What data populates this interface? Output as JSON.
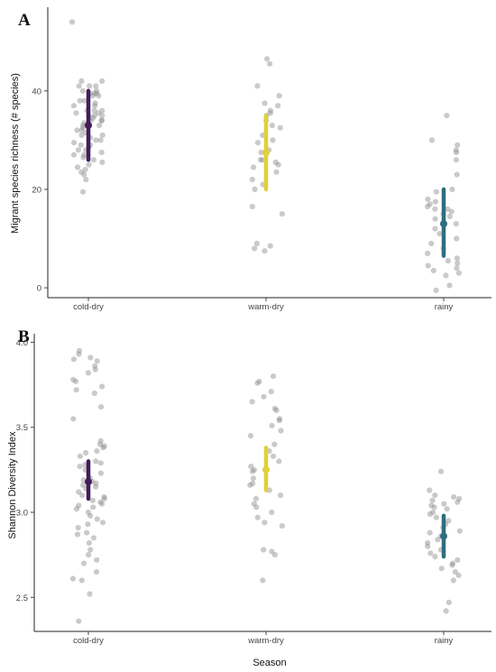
{
  "chart_data": [
    {
      "type": "scatter",
      "panel_label": "A",
      "xlabel": "",
      "ylabel": "Migrant species richness (# species)",
      "categories": [
        "cold-dry",
        "warm-dry",
        "rainy"
      ],
      "ylim": [
        -2,
        57
      ],
      "yticks": [
        0,
        20,
        40
      ],
      "grid": false,
      "summary": [
        {
          "category": "cold-dry",
          "mean": 33,
          "lower": 26,
          "upper": 40,
          "color": "#441a5c"
        },
        {
          "category": "warm-dry",
          "mean": 27.5,
          "lower": 20,
          "upper": 35,
          "color": "#e0d03a"
        },
        {
          "category": "rainy",
          "mean": 13,
          "lower": 6.5,
          "upper": 20,
          "color": "#2f6e7e"
        }
      ],
      "points": [
        {
          "category": "cold-dry",
          "values": [
            54,
            42,
            42,
            41,
            41,
            41,
            40,
            40,
            39.5,
            39.5,
            39.5,
            39,
            39,
            38,
            38,
            37.5,
            37,
            37,
            36,
            36,
            36,
            35.5,
            35.5,
            35,
            35,
            35,
            34.5,
            34,
            34,
            34,
            33.5,
            33,
            33,
            32.5,
            32,
            32,
            31.5,
            31,
            31,
            30.5,
            30,
            30,
            29.5,
            29,
            29,
            28.5,
            28,
            28,
            27.5,
            27,
            27,
            26.5,
            26,
            25.5,
            25,
            24.5,
            24,
            23.5,
            23,
            22,
            19.5
          ]
        },
        {
          "category": "warm-dry",
          "values": [
            46.5,
            45.5,
            41,
            39,
            37.5,
            37,
            36,
            35.5,
            35,
            34,
            33,
            32.5,
            31,
            30,
            29.5,
            28,
            27.5,
            26,
            26,
            25.5,
            25,
            24.5,
            23.5,
            22,
            21,
            20,
            16.5,
            15,
            9,
            8.5,
            8,
            7.5
          ]
        },
        {
          "category": "rainy",
          "values": [
            35,
            30,
            29,
            28,
            27.5,
            26,
            23,
            20,
            19.5,
            18,
            17.5,
            17,
            16.5,
            16,
            16,
            15.5,
            15,
            14.5,
            14,
            13,
            12,
            11,
            10,
            9,
            8,
            7,
            6,
            5.5,
            5,
            4.5,
            4,
            3.5,
            3,
            2.5,
            0.5,
            -0.5
          ]
        }
      ]
    },
    {
      "type": "scatter",
      "panel_label": "B",
      "xlabel": "Season",
      "ylabel": "Shannon Diversity Index",
      "categories": [
        "cold-dry",
        "warm-dry",
        "rainy"
      ],
      "ylim": [
        2.3,
        4.05
      ],
      "yticks": [
        2.5,
        3.0,
        3.5,
        4.0
      ],
      "grid": false,
      "summary": [
        {
          "category": "cold-dry",
          "mean": 3.18,
          "lower": 3.08,
          "upper": 3.3,
          "color": "#441a5c"
        },
        {
          "category": "warm-dry",
          "mean": 3.25,
          "lower": 3.13,
          "upper": 3.38,
          "color": "#e0d03a"
        },
        {
          "category": "rainy",
          "mean": 2.86,
          "lower": 2.74,
          "upper": 2.98,
          "color": "#2f6e7e"
        }
      ],
      "points": [
        {
          "category": "cold-dry",
          "values": [
            3.95,
            3.93,
            3.91,
            3.9,
            3.89,
            3.86,
            3.84,
            3.82,
            3.78,
            3.77,
            3.74,
            3.72,
            3.7,
            3.62,
            3.55,
            3.42,
            3.4,
            3.39,
            3.38,
            3.36,
            3.35,
            3.33,
            3.3,
            3.29,
            3.28,
            3.27,
            3.25,
            3.23,
            3.2,
            3.19,
            3.18,
            3.17,
            3.16,
            3.15,
            3.14,
            3.12,
            3.1,
            3.09,
            3.08,
            3.07,
            3.06,
            3.05,
            3.04,
            3.03,
            3.02,
            3.0,
            2.98,
            2.96,
            2.94,
            2.93,
            2.91,
            2.88,
            2.87,
            2.85,
            2.82,
            2.78,
            2.75,
            2.72,
            2.7,
            2.65,
            2.61,
            2.6,
            2.52,
            2.36
          ]
        },
        {
          "category": "warm-dry",
          "values": [
            3.8,
            3.77,
            3.76,
            3.71,
            3.68,
            3.65,
            3.61,
            3.6,
            3.55,
            3.54,
            3.51,
            3.48,
            3.45,
            3.4,
            3.36,
            3.33,
            3.3,
            3.27,
            3.25,
            3.24,
            3.2,
            3.17,
            3.16,
            3.13,
            3.1,
            3.08,
            3.05,
            3.03,
            3.0,
            2.97,
            2.94,
            2.92,
            2.78,
            2.77,
            2.75,
            2.6
          ]
        },
        {
          "category": "rainy",
          "values": [
            3.24,
            3.13,
            3.1,
            3.09,
            3.08,
            3.07,
            3.06,
            3.05,
            3.04,
            3.03,
            3.02,
            3.0,
            2.99,
            2.97,
            2.95,
            2.93,
            2.91,
            2.89,
            2.88,
            2.86,
            2.84,
            2.82,
            2.8,
            2.78,
            2.76,
            2.74,
            2.72,
            2.7,
            2.69,
            2.67,
            2.65,
            2.63,
            2.6,
            2.47,
            2.42
          ]
        }
      ]
    }
  ]
}
